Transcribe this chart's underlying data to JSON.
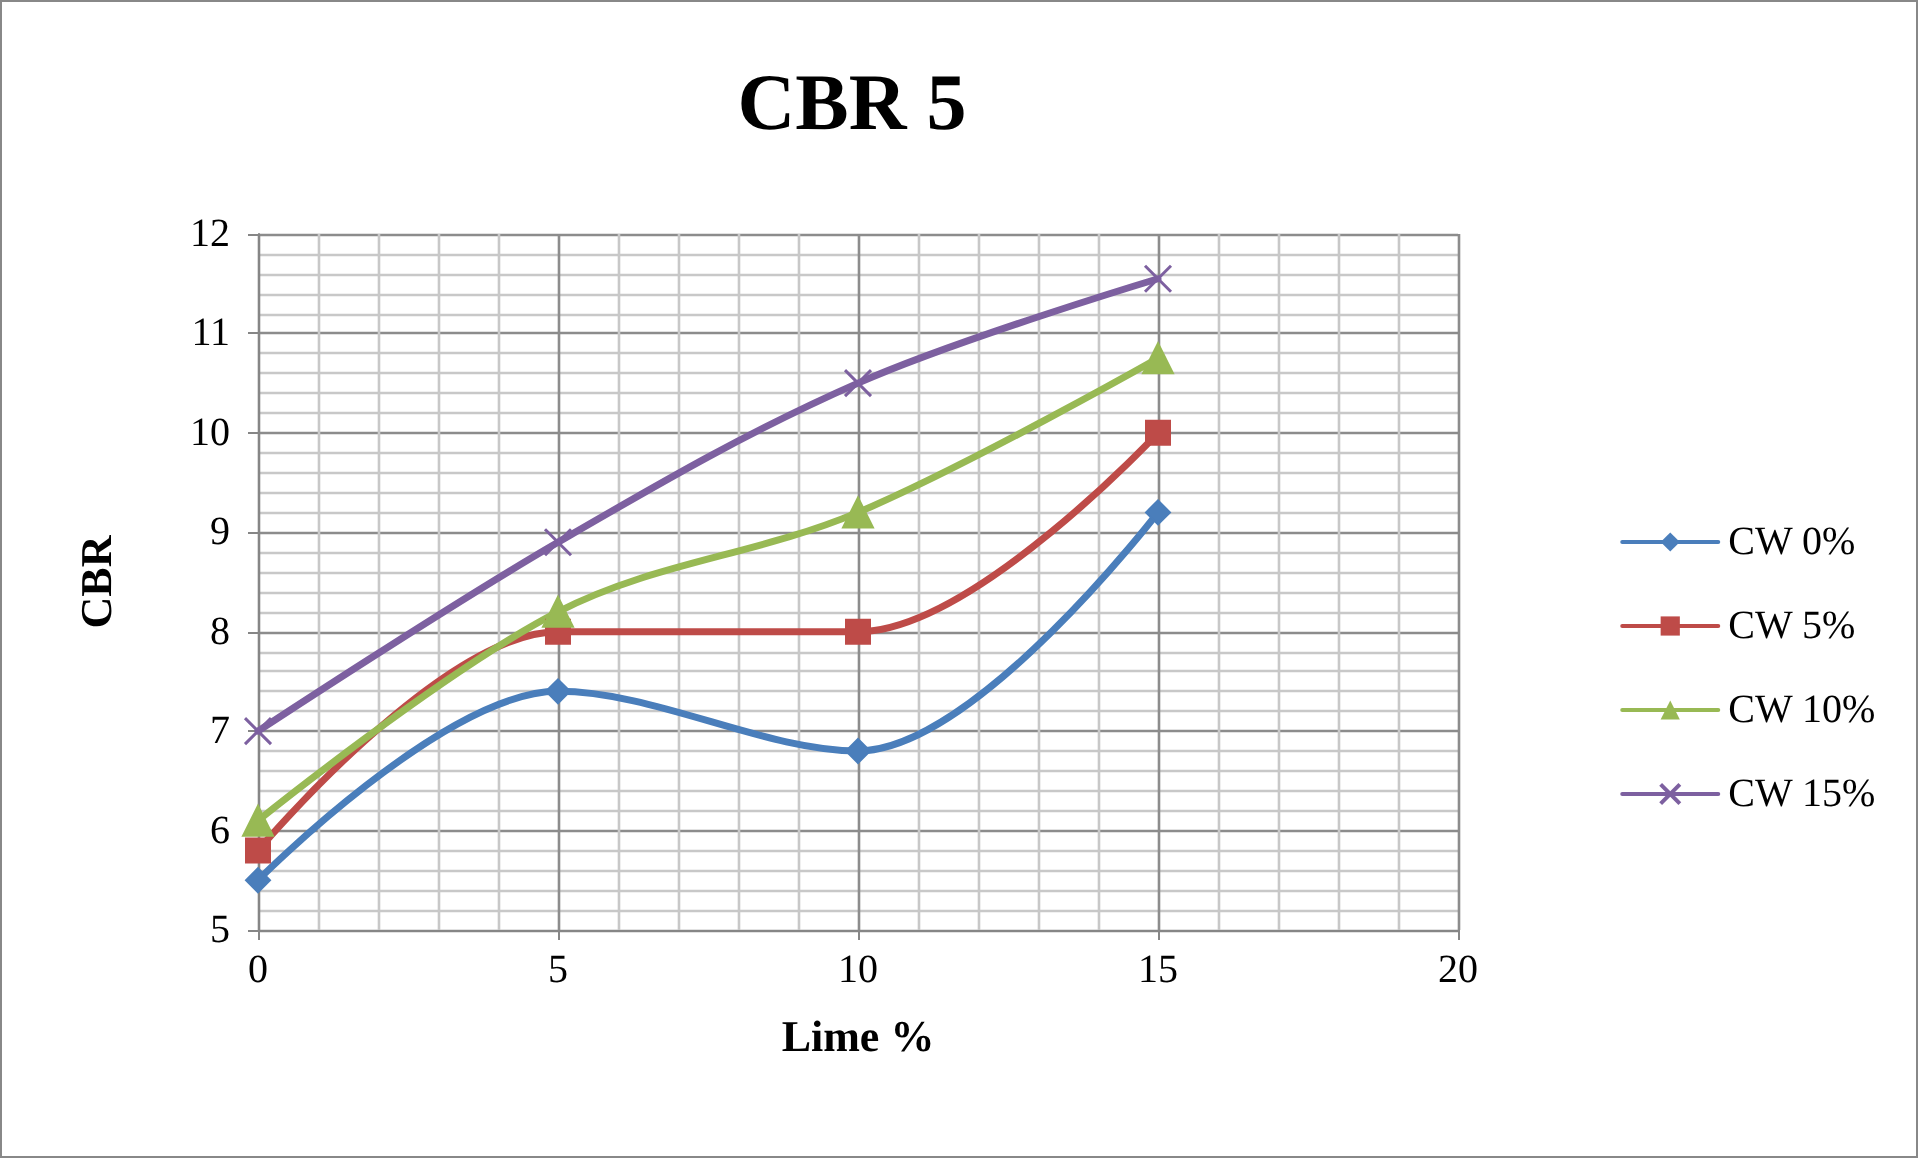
{
  "chart_data": {
    "type": "line",
    "title": "CBR 5",
    "xlabel": "Lime %",
    "ylabel": "CBR",
    "x": [
      0,
      5,
      10,
      15
    ],
    "series": [
      {
        "name": "CW 0%",
        "color": "#4a7ebb",
        "marker": "diamond",
        "values": [
          5.5,
          7.4,
          6.8,
          9.2
        ]
      },
      {
        "name": "CW 5%",
        "color": "#be4b48",
        "marker": "square",
        "values": [
          5.8,
          8.0,
          8.0,
          10.0
        ]
      },
      {
        "name": "CW 10%",
        "color": "#98b954",
        "marker": "triangle",
        "values": [
          6.1,
          8.2,
          9.2,
          10.75
        ]
      },
      {
        "name": "CW 15%",
        "color": "#7d60a0",
        "marker": "cross",
        "values": [
          7.0,
          8.9,
          10.5,
          11.55
        ]
      }
    ],
    "xlim": [
      0,
      20
    ],
    "xticks": [
      0,
      5,
      10,
      15,
      20
    ],
    "ylim": [
      5,
      12
    ],
    "yticks": [
      5,
      6,
      7,
      8,
      9,
      10,
      11,
      12
    ],
    "grid": true,
    "legend": "right",
    "line_style": "solid"
  }
}
